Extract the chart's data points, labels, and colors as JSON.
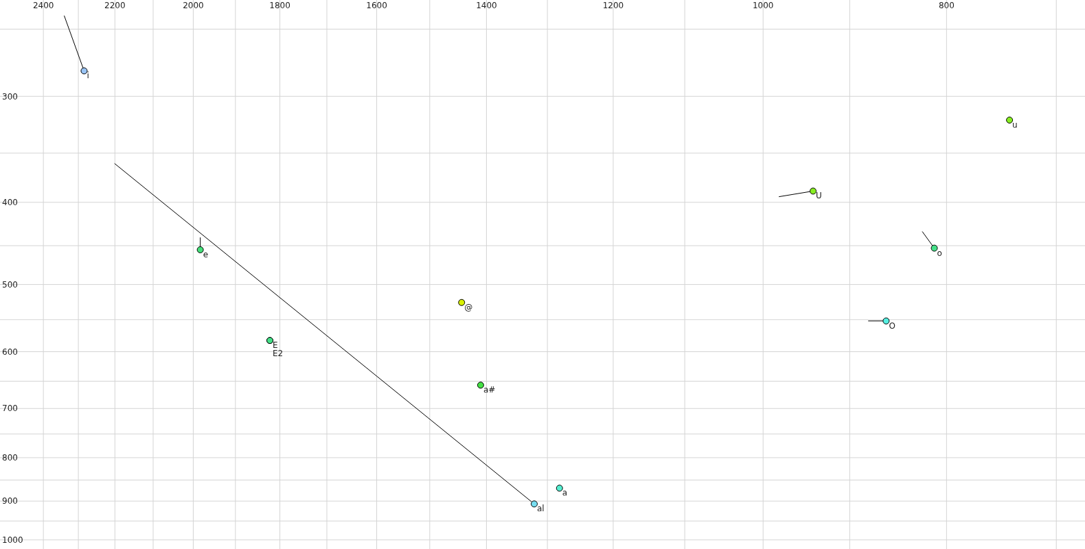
{
  "chart_data": {
    "type": "scatter",
    "log": "xy",
    "grid": true,
    "marker": "circle",
    "xlim": [
      2530,
      676
    ],
    "ylim": [
      1025,
      231
    ],
    "xticks": [
      2400,
      {
        "value": 2300,
        "label": null
      },
      2200,
      {
        "value": 2100,
        "label": null
      },
      2000,
      {
        "value": 1900,
        "label": null
      },
      1800,
      {
        "value": 1700,
        "label": null
      },
      1600,
      {
        "value": 1500,
        "label": null
      },
      1400,
      {
        "value": 1300,
        "label": null
      },
      1200,
      {
        "value": 1100,
        "label": null
      },
      1000,
      {
        "value": 900,
        "label": null
      },
      800,
      {
        "value": 700,
        "label": null
      }
    ],
    "yticks": [
      {
        "value": 250,
        "label": null
      },
      300,
      {
        "value": 350,
        "label": null
      },
      400,
      {
        "value": 450,
        "label": null
      },
      500,
      {
        "value": 550,
        "label": null
      },
      600,
      {
        "value": 650,
        "label": null
      },
      700,
      {
        "value": 750,
        "label": null
      },
      800,
      {
        "value": 850,
        "label": null
      },
      900,
      {
        "value": 950,
        "label": null
      },
      1000
    ],
    "series": [
      {
        "type": "line",
        "color": "#000000",
        "marker": "none",
        "x": [
          2340,
          2284
        ],
        "values": [
          241,
          280
        ]
      },
      {
        "type": "line",
        "color": "#000000",
        "marker": "none",
        "x": [
          1983,
          1983
        ],
        "values": [
          440,
          455
        ]
      },
      {
        "type": "line",
        "color": "#000000",
        "marker": "none",
        "x": [
          2201,
          1321
        ],
        "values": [
          360,
          907
        ]
      },
      {
        "type": "line",
        "color": "#000000",
        "marker": "none",
        "x": [
          981,
          941
        ],
        "values": [
          394,
          388
        ]
      },
      {
        "type": "line",
        "color": "#000000",
        "marker": "none",
        "x": [
          824,
          812
        ],
        "values": [
          433,
          453
        ]
      },
      {
        "type": "line",
        "color": "#000000",
        "marker": "none",
        "x": [
          880,
          861
        ],
        "values": [
          552,
          552
        ]
      },
      {
        "name": "i",
        "color": "#99c4f5",
        "x": [
          2284
        ],
        "values": [
          280
        ]
      },
      {
        "name": "e",
        "color": "#44e07a",
        "x": [
          1983
        ],
        "values": [
          455
        ]
      },
      {
        "name": "E",
        "color": "#44e088",
        "x": [
          1822
        ],
        "values": [
          582
        ]
      },
      {
        "name": "E2",
        "color": "#44e088",
        "x": [
          1822
        ],
        "values": [
          582
        ]
      },
      {
        "name": "@",
        "color": "#d8f000",
        "x": [
          1443
        ],
        "values": [
          525
        ]
      },
      {
        "name": "a#",
        "color": "#44e044",
        "x": [
          1410
        ],
        "values": [
          657
        ]
      },
      {
        "name": "al",
        "color": "#77ddf0",
        "x": [
          1321
        ],
        "values": [
          907
        ]
      },
      {
        "name": "a",
        "color": "#55eed0",
        "x": [
          1281
        ],
        "values": [
          869
        ]
      },
      {
        "name": "U",
        "color": "#88ee22",
        "x": [
          941
        ],
        "values": [
          388
        ]
      },
      {
        "name": "u",
        "color": "#88ee22",
        "x": [
          741
        ],
        "values": [
          320
        ]
      },
      {
        "name": "o",
        "color": "#44e088",
        "x": [
          812
        ],
        "values": [
          453
        ]
      },
      {
        "name": "O",
        "color": "#55eee0",
        "x": [
          861
        ],
        "values": [
          552
        ]
      }
    ]
  }
}
